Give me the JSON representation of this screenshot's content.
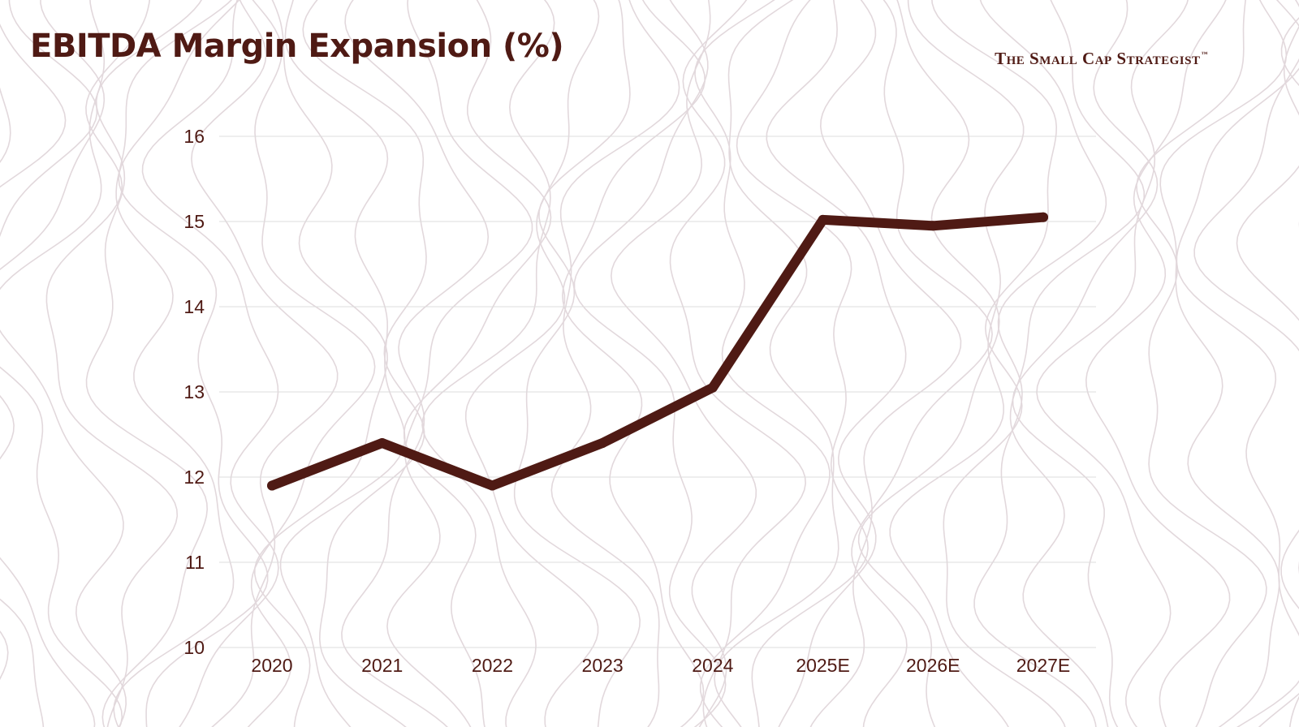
{
  "title": "EBITDA Margin Expansion (%)",
  "brand": {
    "name": "The Small Cap Strategist",
    "mark": "™"
  },
  "colors": {
    "line": "#4f1a14",
    "text": "#4f1a14",
    "grid": "#dcdcdc",
    "contour": "#e2d8dc",
    "background": "#ffffff"
  },
  "chart_data": {
    "type": "line",
    "title": "EBITDA Margin Expansion (%)",
    "xlabel": "",
    "ylabel": "",
    "categories": [
      "2020",
      "2021",
      "2022",
      "2023",
      "2024",
      "2025E",
      "2026E",
      "2027E"
    ],
    "series": [
      {
        "values": [
          11.9,
          12.4,
          11.9,
          12.4,
          13.05,
          15.02,
          14.95,
          15.05
        ]
      }
    ],
    "ylim": [
      10,
      16
    ],
    "yticks": [
      10,
      11,
      12,
      13,
      14,
      15,
      16
    ],
    "grid": "horizontal",
    "legend": "none"
  }
}
